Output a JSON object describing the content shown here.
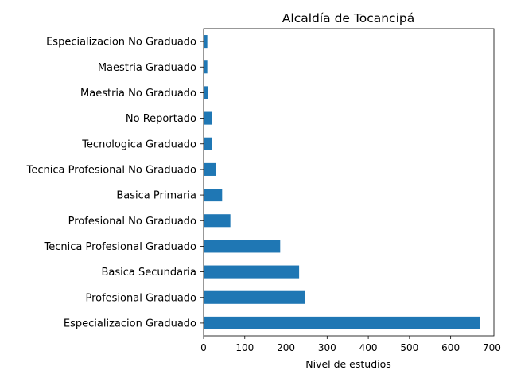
{
  "chart_data": {
    "type": "bar",
    "orientation": "horizontal",
    "title": "Alcaldía de Tocancipá",
    "xlabel": "Nivel de estudios",
    "ylabel": "",
    "xlim": [
      0,
      705
    ],
    "xticks": [
      0,
      100,
      200,
      300,
      400,
      500,
      600,
      700
    ],
    "grid": false,
    "legend": "none",
    "bar_color": "#1f77b4",
    "categories": [
      "Especializacion No Graduado",
      "Maestria Graduado",
      "Maestria No Graduado",
      "No Reportado",
      "Tecnologica Graduado",
      "Tecnica Profesional No Graduado",
      "Basica Primaria",
      "Profesional No Graduado",
      "Tecnica Profesional Graduado",
      "Basica Secundaria",
      "Profesional Graduado",
      "Especializacion Graduado"
    ],
    "values": [
      9,
      9,
      10,
      20,
      20,
      30,
      45,
      65,
      186,
      232,
      247,
      671
    ]
  }
}
